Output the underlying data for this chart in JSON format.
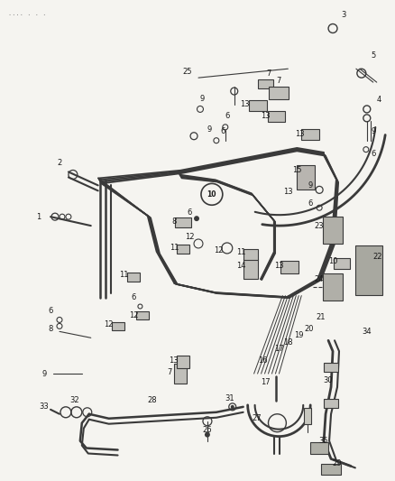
{
  "bg_color": "#f5f4f0",
  "line_color": "#3a3a3a",
  "label_color": "#1a1a1a",
  "fig_width": 4.38,
  "fig_height": 5.33,
  "dpi": 100,
  "header_text": ".... . . .",
  "lw_tube": 1.5,
  "lw_thin": 0.8
}
